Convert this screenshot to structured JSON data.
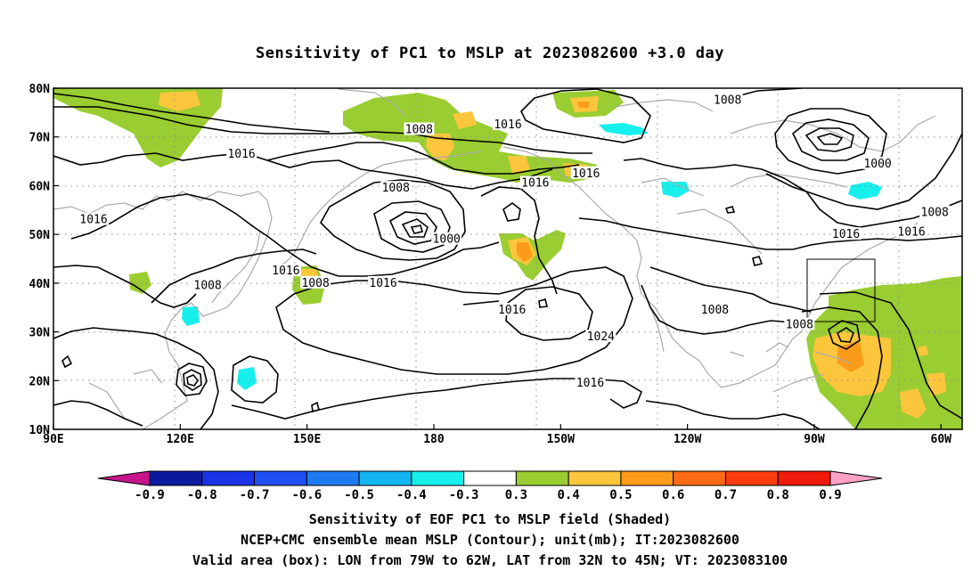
{
  "title": "Sensitivity of PC1 to MSLP at 2023082600 +3.0 day",
  "map": {
    "lat_labels": [
      "80N",
      "70N",
      "60N",
      "50N",
      "40N",
      "30N",
      "20N",
      "10N"
    ],
    "lon_labels": [
      "90E",
      "120E",
      "150E",
      "180",
      "150W",
      "120W",
      "90W",
      "60W"
    ],
    "valid_box": {
      "lon_from": "79W",
      "lon_to": "62W",
      "lat_from": "32N",
      "lat_to": "45N"
    },
    "contour_labels": [
      {
        "text": "1008",
        "lon": 249.5,
        "lat": 77.5
      },
      {
        "text": "1008",
        "lon": 176.5,
        "lat": 71.5
      },
      {
        "text": "1016",
        "lon": 197.5,
        "lat": 72.5
      },
      {
        "text": "1016",
        "lon": 134.5,
        "lat": 66.5
      },
      {
        "text": "1016",
        "lon": 216,
        "lat": 62.5
      },
      {
        "text": "1016",
        "lon": 204,
        "lat": 60.5
      },
      {
        "text": "1008",
        "lon": 171,
        "lat": 59.5
      },
      {
        "text": "1000",
        "lon": 285,
        "lat": 64.5
      },
      {
        "text": "1008",
        "lon": 298.5,
        "lat": 54.5
      },
      {
        "text": "1016",
        "lon": 293,
        "lat": 50.5
      },
      {
        "text": "1016",
        "lon": 277.5,
        "lat": 50
      },
      {
        "text": "1016",
        "lon": 99.5,
        "lat": 53
      },
      {
        "text": "1000",
        "lon": 183,
        "lat": 49
      },
      {
        "text": "1016",
        "lon": 145,
        "lat": 42.5
      },
      {
        "text": "1008",
        "lon": 126.5,
        "lat": 39.5
      },
      {
        "text": "1008",
        "lon": 152,
        "lat": 40
      },
      {
        "text": "1016",
        "lon": 168,
        "lat": 40
      },
      {
        "text": "1016",
        "lon": 198.5,
        "lat": 34.5
      },
      {
        "text": "1024",
        "lon": 219.5,
        "lat": 29
      },
      {
        "text": "1008",
        "lon": 246.5,
        "lat": 34.5
      },
      {
        "text": "1008",
        "lon": 266.5,
        "lat": 31.5
      },
      {
        "text": "1016",
        "lon": 217,
        "lat": 19.5
      }
    ]
  },
  "colorbar": {
    "labels": [
      "-0.9",
      "-0.8",
      "-0.7",
      "-0.6",
      "-0.5",
      "-0.4",
      "-0.3",
      "0.3",
      "0.4",
      "0.5",
      "0.6",
      "0.7",
      "0.8",
      "0.9"
    ],
    "colors": [
      "#0d1a9e",
      "#1a33e6",
      "#1f4ff5",
      "#1e7bf0",
      "#13b5f0",
      "#16f0ec",
      "#ffffff",
      "#9acd32",
      "#fcc63c",
      "#fc9b1a",
      "#fc6a14",
      "#fa3c0e",
      "#f01a0a"
    ],
    "under_color": "#c8148c",
    "over_color": "#fca0c8"
  },
  "shading_colors": {
    "sens_03": "#9acd32",
    "sens_04": "#fcc63c",
    "sens_05": "#fc9b1a",
    "sens_06": "#fc6a14",
    "neg_04": "#16f0ec"
  },
  "footer": {
    "line1": "Sensitivity of EOF PC1 to MSLP field (Shaded)",
    "line2": "NCEP+CMC ensemble mean MSLP (Contour); unit(mb); IT:2023082600",
    "line3": "Valid area (box): LON from 79W to 62W, LAT from 32N to 45N; VT: 2023083100"
  }
}
